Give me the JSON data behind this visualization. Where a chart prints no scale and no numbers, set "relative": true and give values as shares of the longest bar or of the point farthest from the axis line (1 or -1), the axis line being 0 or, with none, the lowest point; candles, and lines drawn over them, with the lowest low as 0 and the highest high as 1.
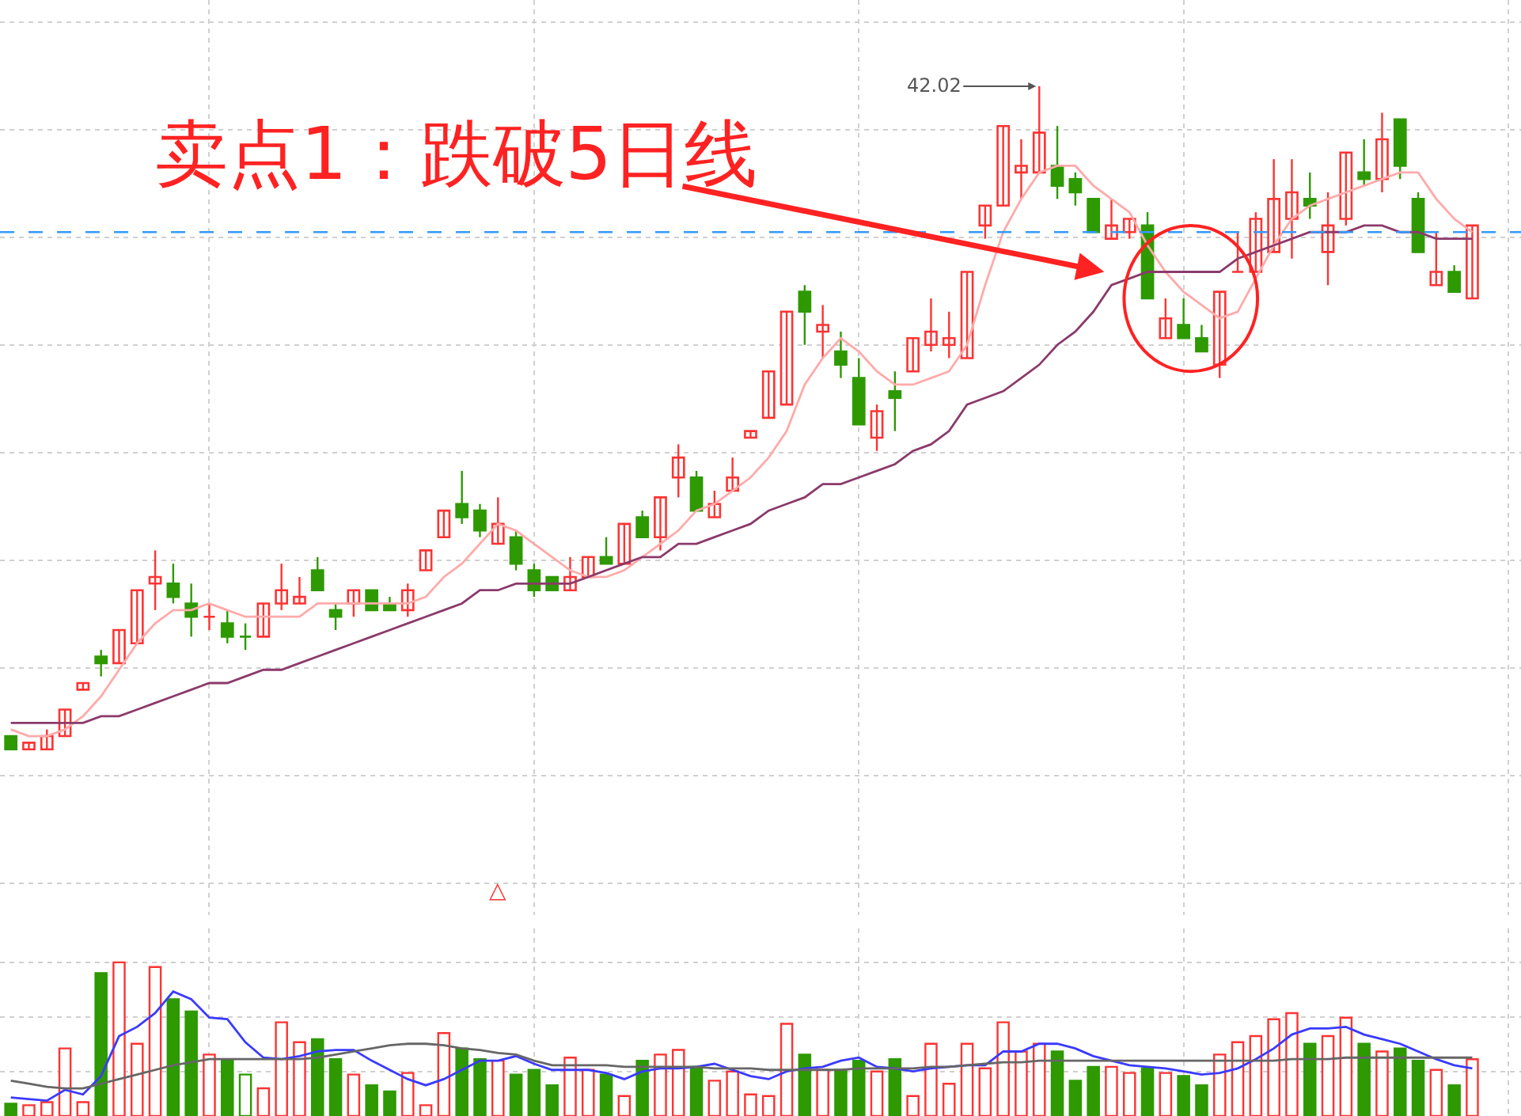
{
  "chart_data": [
    {
      "type": "candlestick",
      "relative": true,
      "grid": true,
      "tick_labels": false,
      "categories": [
        null,
        null,
        null,
        null,
        null,
        null,
        null,
        null,
        null,
        null,
        null,
        null,
        null,
        null,
        null,
        null,
        null,
        null,
        null,
        null,
        null,
        null,
        null,
        null,
        null,
        null,
        null,
        null,
        null,
        null,
        null,
        null,
        null,
        null,
        null,
        null,
        null,
        null,
        null,
        null,
        null,
        null,
        null,
        null,
        null,
        null,
        null,
        null,
        null,
        null,
        null,
        null,
        null,
        null,
        null,
        null,
        null,
        null,
        null,
        null,
        null,
        null,
        null,
        null,
        null,
        null,
        null,
        null,
        null,
        null,
        null,
        null,
        null,
        null,
        null,
        null,
        null,
        null,
        null,
        null,
        null,
        null
      ],
      "ohlc": [
        [
          0.02,
          0.02,
          0,
          0
        ],
        [
          0,
          0.01,
          0,
          0.01
        ],
        [
          0,
          0.03,
          0,
          0.02
        ],
        [
          0.02,
          0.06,
          0.02,
          0.06
        ],
        [
          0.09,
          0.1,
          0.09,
          0.1
        ],
        [
          0.14,
          0.15,
          0.11,
          0.13
        ],
        [
          0.13,
          0.18,
          0.13,
          0.18
        ],
        [
          0.16,
          0.24,
          0.16,
          0.24
        ],
        [
          0.25,
          0.3,
          0.21,
          0.26
        ],
        [
          0.25,
          0.28,
          0.22,
          0.23
        ],
        [
          0.22,
          0.25,
          0.17,
          0.2
        ],
        [
          0.2,
          0.22,
          0.18,
          0.2
        ],
        [
          0.19,
          0.21,
          0.16,
          0.17
        ],
        [
          0.17,
          0.19,
          0.15,
          0.17
        ],
        [
          0.17,
          0.22,
          0.17,
          0.22
        ],
        [
          0.22,
          0.28,
          0.21,
          0.24
        ],
        [
          0.22,
          0.26,
          0.22,
          0.23
        ],
        [
          0.27,
          0.29,
          0.24,
          0.24
        ],
        [
          0.21,
          0.22,
          0.18,
          0.2
        ],
        [
          0.22,
          0.24,
          0.2,
          0.24
        ],
        [
          0.24,
          0.24,
          0.21,
          0.21
        ],
        [
          0.22,
          0.23,
          0.21,
          0.21
        ],
        [
          0.21,
          0.25,
          0.2,
          0.24
        ],
        [
          0.27,
          0.3,
          0.27,
          0.3
        ],
        [
          0.32,
          0.36,
          0.32,
          0.36
        ],
        [
          0.37,
          0.42,
          0.34,
          0.35
        ],
        [
          0.36,
          0.37,
          0.32,
          0.33
        ],
        [
          0.31,
          0.38,
          0.31,
          0.34
        ],
        [
          0.32,
          0.33,
          0.27,
          0.28
        ],
        [
          0.27,
          0.28,
          0.23,
          0.24
        ],
        [
          0.26,
          0.26,
          0.24,
          0.24
        ],
        [
          0.24,
          0.29,
          0.24,
          0.26
        ],
        [
          0.26,
          0.29,
          0.26,
          0.29
        ],
        [
          0.29,
          0.32,
          0.28,
          0.28
        ],
        [
          0.28,
          0.34,
          0.28,
          0.34
        ],
        [
          0.35,
          0.36,
          0.32,
          0.32
        ],
        [
          0.32,
          0.38,
          0.3,
          0.38
        ],
        [
          0.41,
          0.46,
          0.38,
          0.44
        ],
        [
          0.41,
          0.42,
          0.36,
          0.36
        ],
        [
          0.35,
          0.39,
          0.35,
          0.37
        ],
        [
          0.39,
          0.44,
          0.39,
          0.41
        ],
        [
          0.47,
          0.48,
          0.47,
          0.48
        ],
        [
          0.5,
          0.57,
          0.5,
          0.57
        ],
        [
          0.52,
          0.66,
          0.52,
          0.66
        ],
        [
          0.69,
          0.7,
          0.61,
          0.66
        ],
        [
          0.63,
          0.67,
          0.59,
          0.64
        ],
        [
          0.6,
          0.63,
          0.56,
          0.58
        ],
        [
          0.56,
          0.59,
          0.49,
          0.49
        ],
        [
          0.47,
          0.52,
          0.45,
          0.51
        ],
        [
          0.54,
          0.57,
          0.48,
          0.53
        ],
        [
          0.57,
          0.62,
          0.57,
          0.62
        ],
        [
          0.61,
          0.68,
          0.6,
          0.63
        ],
        [
          0.61,
          0.66,
          0.59,
          0.62
        ],
        [
          0.59,
          0.72,
          0.59,
          0.72
        ],
        [
          0.79,
          0.82,
          0.77,
          0.82
        ],
        [
          0.82,
          0.94,
          0.82,
          0.94
        ],
        [
          0.87,
          0.92,
          0.83,
          0.88
        ],
        [
          0.87,
          1,
          0.87,
          0.93
        ],
        [
          0.88,
          0.94,
          0.83,
          0.85
        ],
        [
          0.86,
          0.87,
          0.82,
          0.84
        ],
        [
          0.83,
          0.83,
          0.78,
          0.78
        ],
        [
          0.77,
          0.83,
          0.77,
          0.79
        ],
        [
          0.78,
          0.8,
          0.77,
          0.8
        ],
        [
          0.79,
          0.81,
          0.68,
          0.68
        ],
        [
          0.62,
          0.68,
          0.62,
          0.65
        ],
        [
          0.64,
          0.68,
          0.62,
          0.62
        ],
        [
          0.62,
          0.64,
          0.6,
          0.6
        ],
        [
          0.58,
          0.69,
          0.56,
          0.69
        ],
        [
          0.72,
          0.78,
          0.72,
          0.72
        ],
        [
          0.72,
          0.81,
          0.72,
          0.8
        ],
        [
          0.75,
          0.89,
          0.75,
          0.83
        ],
        [
          0.8,
          0.89,
          0.74,
          0.84
        ],
        [
          0.83,
          0.87,
          0.8,
          0.82
        ],
        [
          0.75,
          0.84,
          0.7,
          0.79
        ],
        [
          0.8,
          0.9,
          0.79,
          0.9
        ],
        [
          0.87,
          0.92,
          0.85,
          0.86
        ],
        [
          0.86,
          0.96,
          0.84,
          0.92
        ],
        [
          0.95,
          0.95,
          0.86,
          0.88
        ],
        [
          0.83,
          0.84,
          0.75,
          0.75
        ],
        [
          0.7,
          0.78,
          0.7,
          0.72
        ],
        [
          0.72,
          0.73,
          0.69,
          0.69
        ],
        [
          0.68,
          0.79,
          0.68,
          0.79
        ]
      ],
      "colors": [
        "#2e9900",
        "#ff3333",
        "#ff3333",
        "#ff3333",
        "#ff3333",
        "#2e9900",
        "#ff3333",
        "#ff3333",
        "#ff3333",
        "#2e9900",
        "#2e9900",
        "#ff3333",
        "#2e9900",
        "#2e9900",
        "#ff3333",
        "#ff3333",
        "#ff3333",
        "#2e9900",
        "#2e9900",
        "#ff3333",
        "#2e9900",
        "#2e9900",
        "#ff3333",
        "#ff3333",
        "#ff3333",
        "#2e9900",
        "#2e9900",
        "#ff3333",
        "#2e9900",
        "#2e9900",
        "#2e9900",
        "#ff3333",
        "#ff3333",
        "#2e9900",
        "#ff3333",
        "#2e9900",
        "#ff3333",
        "#ff3333",
        "#2e9900",
        "#ff3333",
        "#ff3333",
        "#ff3333",
        "#ff3333",
        "#ff3333",
        "#2e9900",
        "#ff3333",
        "#2e9900",
        "#2e9900",
        "#ff3333",
        "#2e9900",
        "#ff3333",
        "#ff3333",
        "#ff3333",
        "#ff3333",
        "#ff3333",
        "#ff3333",
        "#ff3333",
        "#ff3333",
        "#2e9900",
        "#2e9900",
        "#2e9900",
        "#ff3333",
        "#ff3333",
        "#2e9900",
        "#ff3333",
        "#2e9900",
        "#2e9900",
        "#ff3333",
        "#ff3333",
        "#ff3333",
        "#ff3333",
        "#ff3333",
        "#2e9900",
        "#ff3333",
        "#ff3333",
        "#2e9900",
        "#ff3333",
        "#2e9900",
        "#2e9900",
        "#ff3333",
        "#2e9900",
        "#ff3333"
      ],
      "series": [
        {
          "type": "line",
          "color": "#ffaaaa",
          "values": [
            0.03,
            0.02,
            0.02,
            0.03,
            0.05,
            0.08,
            0.12,
            0.16,
            0.19,
            0.21,
            0.21,
            0.22,
            0.21,
            0.2,
            0.2,
            0.2,
            0.2,
            0.22,
            0.22,
            0.22,
            0.22,
            0.22,
            0.22,
            0.23,
            0.26,
            0.28,
            0.31,
            0.34,
            0.33,
            0.31,
            0.29,
            0.27,
            0.26,
            0.26,
            0.27,
            0.29,
            0.31,
            0.33,
            0.36,
            0.37,
            0.39,
            0.41,
            0.44,
            0.48,
            0.55,
            0.59,
            0.62,
            0.6,
            0.57,
            0.55,
            0.55,
            0.56,
            0.57,
            0.61,
            0.7,
            0.78,
            0.83,
            0.87,
            0.88,
            0.88,
            0.85,
            0.83,
            0.81,
            0.76,
            0.72,
            0.69,
            0.67,
            0.65,
            0.66,
            0.71,
            0.76,
            0.8,
            0.82,
            0.83,
            0.84,
            0.85,
            0.86,
            0.87,
            0.87,
            0.83,
            0.8,
            0.78
          ]
        },
        {
          "type": "line",
          "color": "#8b3a6b",
          "values": [
            0.04,
            0.04,
            0.04,
            0.04,
            0.04,
            0.05,
            0.05,
            0.06,
            0.07,
            0.08,
            0.09,
            0.1,
            0.1,
            0.11,
            0.12,
            0.12,
            0.13,
            0.14,
            0.15,
            0.16,
            0.17,
            0.18,
            0.19,
            0.2,
            0.21,
            0.22,
            0.24,
            0.24,
            0.25,
            0.25,
            0.25,
            0.25,
            0.26,
            0.27,
            0.28,
            0.29,
            0.29,
            0.31,
            0.31,
            0.32,
            0.33,
            0.34,
            0.36,
            0.37,
            0.38,
            0.4,
            0.4,
            0.41,
            0.42,
            0.43,
            0.45,
            0.46,
            0.48,
            0.52,
            0.53,
            0.54,
            0.56,
            0.58,
            0.61,
            0.63,
            0.66,
            0.7,
            0.71,
            0.72,
            0.72,
            0.72,
            0.72,
            0.72,
            0.74,
            0.75,
            0.76,
            0.77,
            0.78,
            0.78,
            0.78,
            0.79,
            0.79,
            0.78,
            0.78,
            0.77,
            0.77,
            0.77
          ]
        }
      ],
      "ref_lines": [
        {
          "axis": "y",
          "value": 0.78,
          "color": "#3399ff",
          "line_style": "dashed"
        }
      ],
      "annotations": [
        "卖点1：跌破5日线",
        "42.02",
        "△"
      ]
    },
    {
      "type": "bar",
      "relative": true,
      "grid": true,
      "tick_labels": false,
      "categories": [
        null,
        null,
        null,
        null,
        null,
        null,
        null,
        null,
        null,
        null,
        null,
        null,
        null,
        null,
        null,
        null,
        null,
        null,
        null,
        null,
        null,
        null,
        null,
        null,
        null,
        null,
        null,
        null,
        null,
        null,
        null,
        null,
        null,
        null,
        null,
        null,
        null,
        null,
        null,
        null,
        null,
        null,
        null,
        null,
        null,
        null,
        null,
        null,
        null,
        null,
        null,
        null,
        null,
        null,
        null,
        null,
        null,
        null,
        null,
        null,
        null,
        null,
        null,
        null,
        null,
        null,
        null,
        null,
        null,
        null,
        null,
        null,
        null,
        null,
        null,
        null,
        null,
        null,
        null,
        null,
        null,
        null
      ],
      "values": [
        0.08,
        0.07,
        0.09,
        0.44,
        0.09,
        0.93,
        1,
        0.47,
        0.97,
        0.76,
        0.68,
        0.4,
        0.36,
        0.27,
        0.18,
        0.61,
        0.48,
        0.5,
        0.37,
        0.27,
        0.2,
        0.16,
        0.28,
        0.07,
        0.54,
        0.44,
        0.37,
        0.36,
        0.27,
        0.3,
        0.2,
        0.38,
        0.3,
        0.27,
        0.13,
        0.36,
        0.4,
        0.43,
        0.32,
        0.23,
        0.29,
        0.14,
        0.13,
        0.6,
        0.4,
        0.3,
        0.3,
        0.36,
        0.29,
        0.37,
        0.13,
        0.47,
        0.21,
        0.47,
        0.31,
        0.61,
        0.42,
        0.47,
        0.42,
        0.23,
        0.32,
        0.32,
        0.28,
        0.31,
        0.28,
        0.26,
        0.2,
        0.4,
        0.48,
        0.52,
        0.63,
        0.67,
        0.47,
        0.52,
        0.64,
        0.47,
        0.42,
        0.44,
        0.36,
        0.3,
        0.2,
        0.37
      ],
      "colors": [
        "#2e9900",
        "#ff3333",
        "#ff3333",
        "#ff3333",
        "#ff3333",
        "#2e9900",
        "#ff3333",
        "#ff3333",
        "#ff3333",
        "#2e9900",
        "#2e9900",
        "#ff3333",
        "#2e9900",
        "#2e9900",
        "#ff3333",
        "#ff3333",
        "#ff3333",
        "#2e9900",
        "#2e9900",
        "#ff3333",
        "#2e9900",
        "#2e9900",
        "#ff3333",
        "#ff3333",
        "#ff3333",
        "#2e9900",
        "#2e9900",
        "#ff3333",
        "#2e9900",
        "#2e9900",
        "#2e9900",
        "#ff3333",
        "#ff3333",
        "#2e9900",
        "#ff3333",
        "#2e9900",
        "#ff3333",
        "#ff3333",
        "#2e9900",
        "#ff3333",
        "#ff3333",
        "#ff3333",
        "#ff3333",
        "#ff3333",
        "#2e9900",
        "#ff3333",
        "#2e9900",
        "#2e9900",
        "#ff3333",
        "#2e9900",
        "#ff3333",
        "#ff3333",
        "#ff3333",
        "#ff3333",
        "#ff3333",
        "#ff3333",
        "#ff3333",
        "#ff3333",
        "#2e9900",
        "#2e9900",
        "#2e9900",
        "#ff3333",
        "#ff3333",
        "#2e9900",
        "#ff3333",
        "#2e9900",
        "#2e9900",
        "#ff3333",
        "#ff3333",
        "#ff3333",
        "#ff3333",
        "#ff3333",
        "#2e9900",
        "#ff3333",
        "#ff3333",
        "#2e9900",
        "#ff3333",
        "#2e9900",
        "#2e9900",
        "#ff3333",
        "#2e9900",
        "#ff3333"
      ],
      "series": [
        {
          "type": "line",
          "color": "#3a3aff",
          "values": [
            0.12,
            0.11,
            0.1,
            0.17,
            0.14,
            0.26,
            0.52,
            0.58,
            0.67,
            0.81,
            0.76,
            0.64,
            0.63,
            0.48,
            0.38,
            0.37,
            0.39,
            0.42,
            0.43,
            0.43,
            0.36,
            0.3,
            0.24,
            0.2,
            0.24,
            0.3,
            0.36,
            0.36,
            0.39,
            0.34,
            0.3,
            0.3,
            0.3,
            0.28,
            0.24,
            0.29,
            0.31,
            0.31,
            0.32,
            0.34,
            0.3,
            0.26,
            0.24,
            0.29,
            0.31,
            0.32,
            0.36,
            0.38,
            0.32,
            0.31,
            0.29,
            0.31,
            0.32,
            0.33,
            0.33,
            0.42,
            0.42,
            0.47,
            0.47,
            0.44,
            0.39,
            0.36,
            0.33,
            0.32,
            0.31,
            0.29,
            0.27,
            0.28,
            0.31,
            0.37,
            0.44,
            0.53,
            0.57,
            0.57,
            0.58,
            0.53,
            0.5,
            0.47,
            0.42,
            0.37,
            0.33,
            0.31
          ]
        },
        {
          "type": "line",
          "color": "#666666",
          "values": [
            0.23,
            0.21,
            0.19,
            0.18,
            0.18,
            0.21,
            0.24,
            0.27,
            0.3,
            0.33,
            0.35,
            0.37,
            0.37,
            0.37,
            0.37,
            0.37,
            0.37,
            0.38,
            0.4,
            0.42,
            0.44,
            0.46,
            0.47,
            0.47,
            0.46,
            0.44,
            0.43,
            0.41,
            0.4,
            0.36,
            0.33,
            0.33,
            0.33,
            0.33,
            0.32,
            0.32,
            0.32,
            0.32,
            0.32,
            0.31,
            0.31,
            0.31,
            0.3,
            0.3,
            0.3,
            0.3,
            0.3,
            0.31,
            0.31,
            0.31,
            0.31,
            0.32,
            0.32,
            0.33,
            0.34,
            0.35,
            0.35,
            0.36,
            0.36,
            0.36,
            0.36,
            0.36,
            0.36,
            0.36,
            0.36,
            0.36,
            0.36,
            0.36,
            0.36,
            0.36,
            0.36,
            0.37,
            0.37,
            0.37,
            0.38,
            0.38,
            0.38,
            0.38,
            0.38,
            0.38,
            0.38,
            0.38
          ]
        }
      ]
    }
  ]
}
